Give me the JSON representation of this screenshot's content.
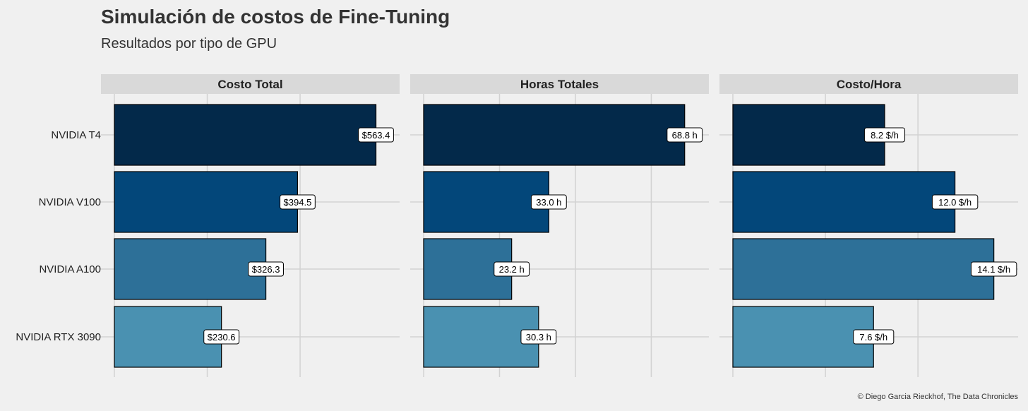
{
  "title": "Simulación de costos de Fine-Tuning",
  "subtitle": "Resultados por tipo de GPU",
  "caption": "© Diego Garcia Rieckhof, The Data Chronicles",
  "colors": {
    "background": "#f0f0f0",
    "strip": "#d9d9d9",
    "grid": "#d2d2d2",
    "bars": [
      "#03294a",
      "#03477a",
      "#2d7098",
      "#4a91b1"
    ]
  },
  "chart_data": {
    "type": "bar",
    "orientation": "horizontal",
    "categories": [
      "NVIDIA T4",
      "NVIDIA V100",
      "NVIDIA A100",
      "NVIDIA RTX 3090"
    ],
    "grid": true,
    "facets": [
      {
        "name": "Costo Total",
        "values": [
          563.4,
          394.5,
          326.3,
          230.6
        ],
        "labels": [
          "$563.4",
          "$394.5",
          "$326.3",
          "$230.6"
        ],
        "xlim": [
          0,
          590
        ],
        "gridlines": [
          0,
          200,
          400
        ]
      },
      {
        "name": "Horas Totales",
        "values": [
          68.8,
          33.0,
          23.2,
          30.3
        ],
        "labels": [
          "68.8 h",
          "33.0 h",
          "23.2 h",
          "30.3 h"
        ],
        "xlim": [
          0,
          72.2
        ],
        "gridlines": [
          0,
          20,
          40,
          60
        ]
      },
      {
        "name": "Costo/Hora",
        "values": [
          8.2,
          12.0,
          14.1,
          7.6
        ],
        "labels": [
          "8.2 $/h",
          "12.0 $/h",
          "14.1 $/h",
          "7.6 $/h"
        ],
        "xlim": [
          0,
          14.8
        ],
        "gridlines": [
          0,
          5,
          10
        ]
      }
    ]
  }
}
